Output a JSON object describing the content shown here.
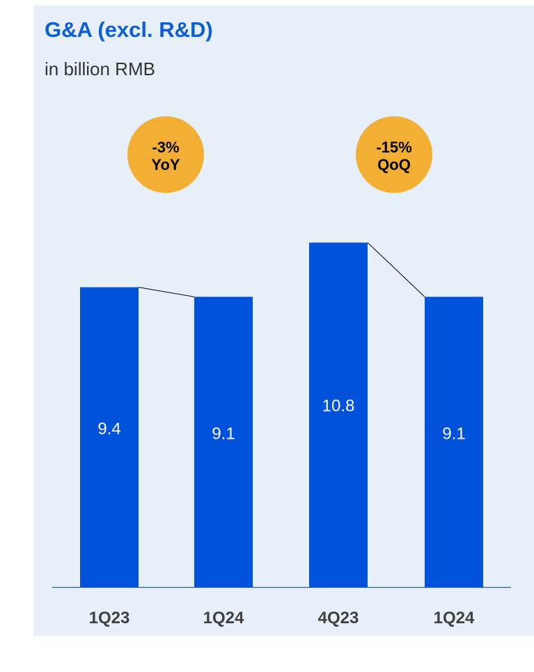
{
  "header": {
    "title": "G&A (excl. R&D)",
    "subtitle": "in billion RMB"
  },
  "colors": {
    "bar": "#0052DB",
    "badge": "#F2AF33",
    "title": "#0D5FD6",
    "panel_background": "#E7EFF9",
    "axis": "#0D5FD6"
  },
  "chart_data": [
    {
      "type": "bar",
      "categories": [
        "1Q23",
        "1Q24"
      ],
      "values": [
        9.4,
        9.1
      ],
      "annotation": {
        "line1": "-3%",
        "line2": "YoY"
      },
      "ylim": [
        0,
        12
      ],
      "xlabel": "",
      "ylabel": "",
      "grid": false,
      "legend": "none",
      "data_labels": [
        "9.4",
        "9.1"
      ]
    },
    {
      "type": "bar",
      "categories": [
        "4Q23",
        "1Q24"
      ],
      "values": [
        10.8,
        9.1
      ],
      "annotation": {
        "line1": "-15%",
        "line2": "QoQ"
      },
      "ylim": [
        0,
        12
      ],
      "xlabel": "",
      "ylabel": "",
      "grid": false,
      "legend": "none",
      "data_labels": [
        "10.8",
        "9.1"
      ]
    }
  ]
}
